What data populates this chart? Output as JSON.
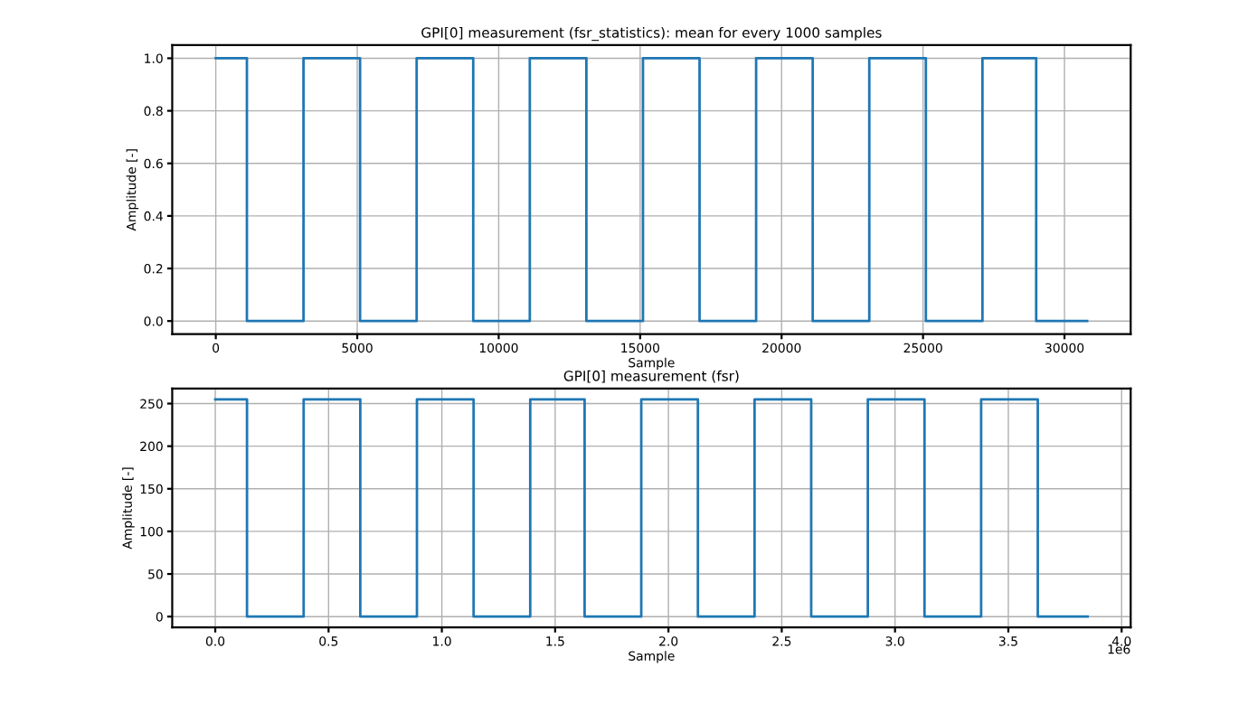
{
  "chart_data": [
    {
      "type": "step",
      "title": "GPI[0] measurement (fsr_statistics): mean for every 1000 samples",
      "xlabel": "Sample",
      "ylabel": "Amplitude [-]",
      "series": [
        {
          "color": "#1f77b4",
          "x": [
            0,
            1100,
            3100,
            5100,
            7100,
            9100,
            11100,
            13100,
            15100,
            17100,
            19100,
            21100,
            23100,
            25100,
            27100,
            29000,
            30800
          ],
          "values": [
            1,
            0,
            1,
            0,
            1,
            0,
            1,
            0,
            1,
            0,
            1,
            0,
            1,
            0,
            1,
            0,
            0
          ]
        }
      ],
      "xlim": [
        -1540,
        32340
      ],
      "xticks": [
        0,
        5000,
        10000,
        15000,
        20000,
        25000,
        30000
      ],
      "ylim": [
        -0.05,
        1.05
      ],
      "yticks": [
        {
          "value": 0,
          "label": "0.0"
        },
        {
          "value": 0.2,
          "label": "0.2"
        },
        {
          "value": 0.4,
          "label": "0.4"
        },
        {
          "value": 0.6,
          "label": "0.6"
        },
        {
          "value": 0.8,
          "label": "0.8"
        },
        {
          "value": 1,
          "label": "1.0"
        }
      ],
      "grid": true,
      "marker": "none",
      "line_style": "solid"
    },
    {
      "type": "step",
      "title": "GPI[0] measurement (fsr)",
      "xlabel": "Sample",
      "ylabel": "Amplitude [-]",
      "annotations": [
        "1e6"
      ],
      "series": [
        {
          "color": "#1f77b4",
          "x": [
            0,
            0.14,
            0.39,
            0.64,
            0.89,
            1.14,
            1.39,
            1.63,
            1.88,
            2.13,
            2.38,
            2.63,
            2.88,
            3.13,
            3.38,
            3.63,
            3.85
          ],
          "values": [
            255,
            0,
            255,
            0,
            255,
            0,
            255,
            0,
            255,
            0,
            255,
            0,
            255,
            0,
            255,
            0,
            0
          ]
        }
      ],
      "xlim": [
        -0.19,
        4.04
      ],
      "xticks": [
        {
          "value": 0,
          "label": "0.0"
        },
        0.5,
        {
          "value": 1,
          "label": "1.0"
        },
        1.5,
        {
          "value": 2,
          "label": "2.0"
        },
        2.5,
        {
          "value": 3,
          "label": "3.0"
        },
        3.5,
        {
          "value": 4,
          "label": "4.0"
        }
      ],
      "ylim": [
        -12.75,
        267.75
      ],
      "yticks": [
        0,
        50,
        100,
        150,
        200,
        250
      ],
      "grid": true,
      "marker": "none",
      "line_style": "solid"
    }
  ]
}
